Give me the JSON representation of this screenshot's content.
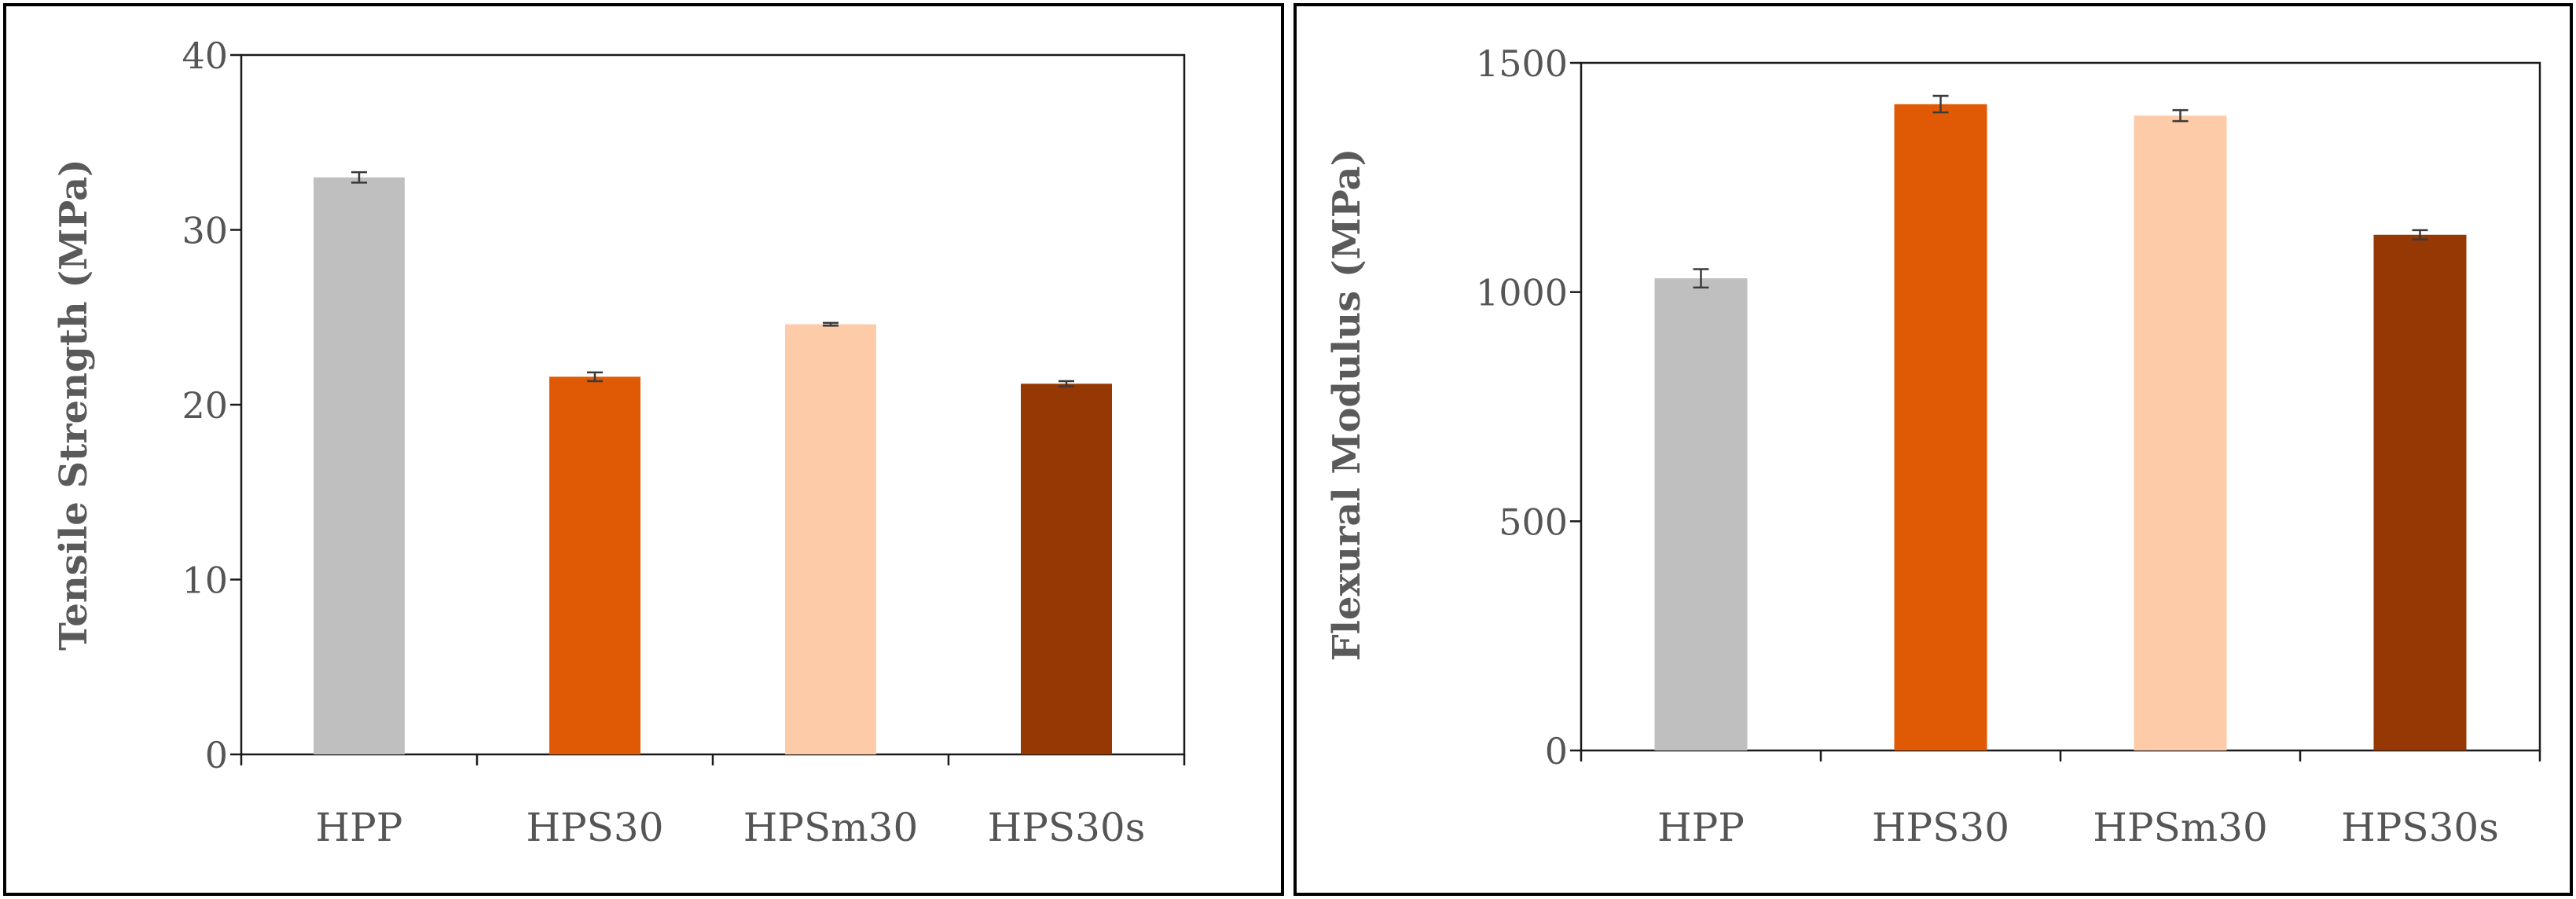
{
  "chart_data": [
    {
      "type": "bar",
      "categories": [
        "HPP",
        "HPS30",
        "HPSm30",
        "HPS30s"
      ],
      "values": [
        33.0,
        21.6,
        24.6,
        21.2
      ],
      "errors": [
        0.3,
        0.25,
        0.08,
        0.15
      ],
      "colors": [
        "#bfbfbf",
        "#e05a06",
        "#fdcba8",
        "#963803"
      ],
      "ylabel": "Tensile Strength (MPa)",
      "ylim": [
        0,
        40
      ],
      "yticks": [
        0,
        10,
        20,
        30,
        40
      ],
      "grid": false
    },
    {
      "type": "bar",
      "categories": [
        "HPP",
        "HPS30",
        "HPSm30",
        "HPS30s"
      ],
      "values": [
        1030,
        1410,
        1385,
        1125
      ],
      "errors": [
        20,
        18,
        12,
        10
      ],
      "colors": [
        "#bfbfbf",
        "#e05a06",
        "#fdcba8",
        "#963803"
      ],
      "ylabel": "Flexural Modulus (MPa)",
      "ylim": [
        0,
        1500
      ],
      "yticks": [
        0,
        500,
        1000,
        1500
      ],
      "grid": false
    }
  ]
}
